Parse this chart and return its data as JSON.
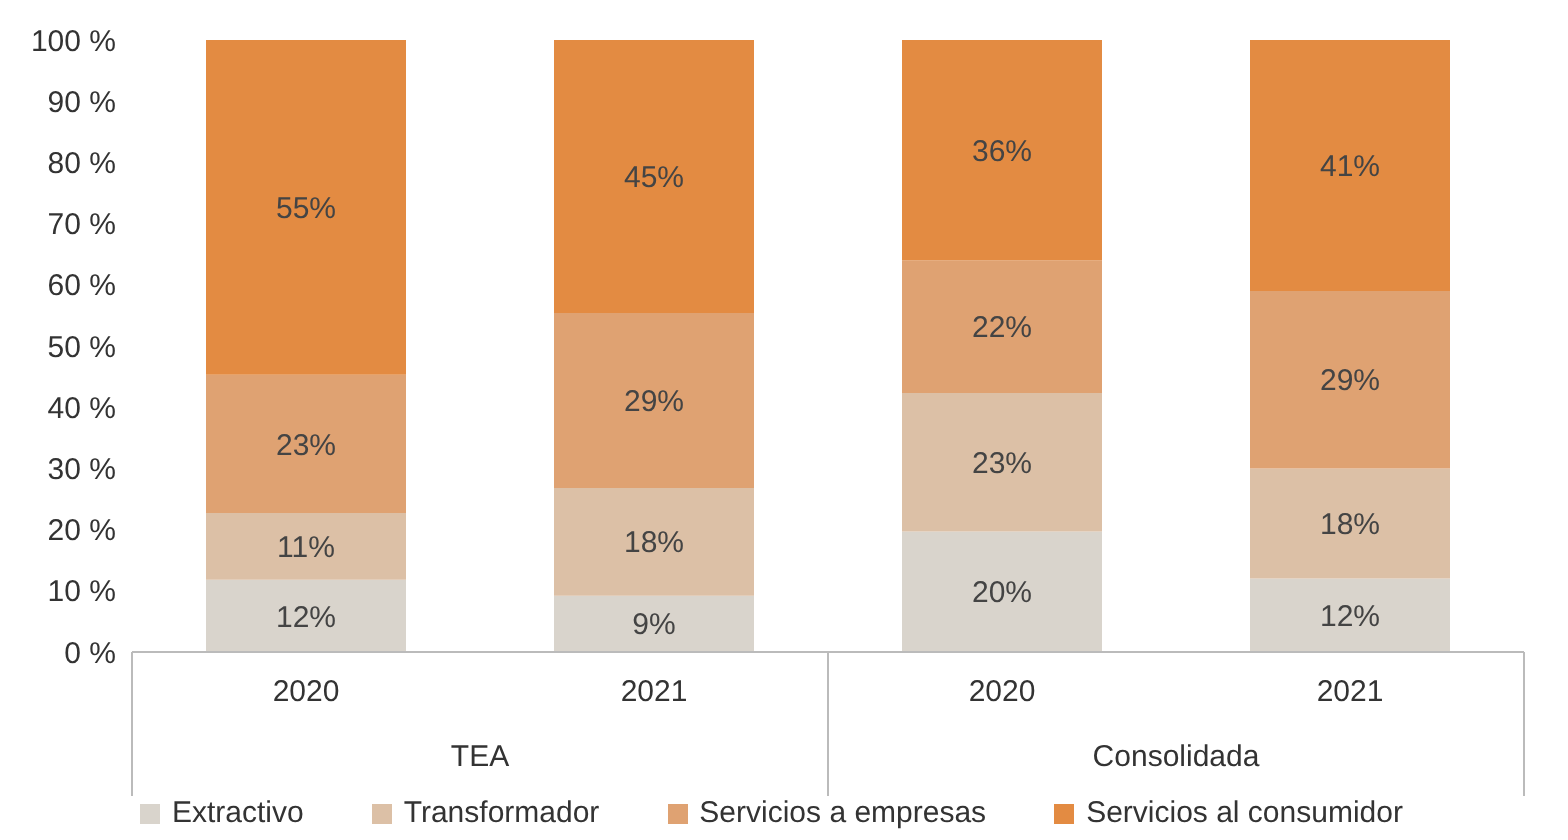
{
  "chart_data": {
    "type": "bar",
    "stacked": true,
    "categories": [
      "2020",
      "2021",
      "2020",
      "2021"
    ],
    "annotations": [
      "TEA",
      "Consolidada"
    ],
    "series": [
      {
        "name": "Extractivo",
        "color": "#d9d4cc",
        "values": [
          11.8,
          9.2,
          19.7,
          12
        ],
        "value_labels": [
          "12%",
          "9%",
          "20%",
          "12%"
        ]
      },
      {
        "name": "Transformador",
        "color": "#dcc0a6",
        "values": [
          10.9,
          17.6,
          22.6,
          18
        ],
        "value_labels": [
          "11%",
          "18%",
          "23%",
          "18%"
        ]
      },
      {
        "name": "Servicios a empresas",
        "color": "#dfa272",
        "values": [
          22.6,
          28.6,
          21.7,
          29
        ],
        "value_labels": [
          "23%",
          "29%",
          "22%",
          "29%"
        ]
      },
      {
        "name": "Servicios al consumidor",
        "color": "#e38b42",
        "values": [
          54.7,
          44.6,
          36,
          41
        ],
        "value_labels": [
          "55%",
          "45%",
          "36%",
          "41%"
        ]
      }
    ],
    "ylim": [
      0,
      100
    ],
    "yticks": [
      {
        "value": 0,
        "label": "0 %"
      },
      {
        "value": 10,
        "label": "10 %"
      },
      {
        "value": 20,
        "label": "20 %"
      },
      {
        "value": 30,
        "label": "30 %"
      },
      {
        "value": 40,
        "label": "40 %"
      },
      {
        "value": 50,
        "label": "50 %"
      },
      {
        "value": 60,
        "label": "60 %"
      },
      {
        "value": 70,
        "label": "70 %"
      },
      {
        "value": 80,
        "label": "80 %"
      },
      {
        "value": 90,
        "label": "90 %"
      },
      {
        "value": 100,
        "label": "100 %"
      }
    ],
    "grid": false,
    "legend": "bottom"
  }
}
